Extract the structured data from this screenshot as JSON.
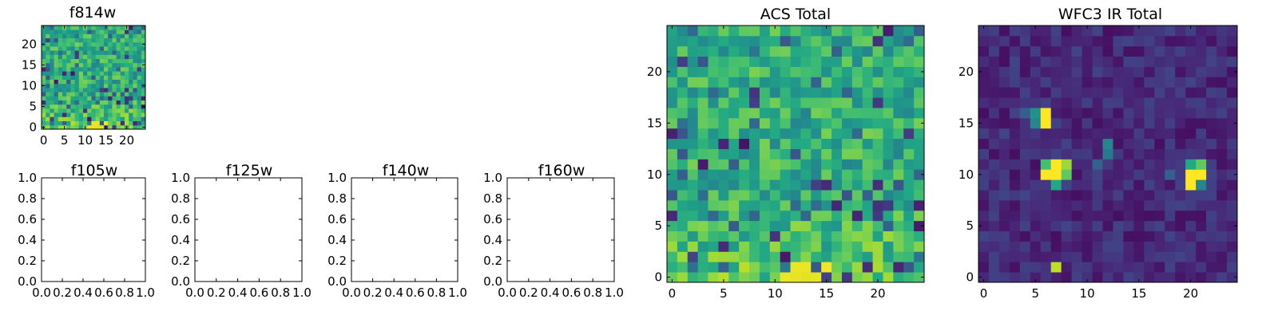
{
  "colormap": "viridis",
  "colors": {
    "viridis": [
      "#440154",
      "#482475",
      "#414487",
      "#355f8d",
      "#2a788e",
      "#21918c",
      "#22a884",
      "#44bf70",
      "#7ad151",
      "#bddf26",
      "#fde725"
    ],
    "frame": "#000000",
    "background": "#ffffff"
  },
  "chart_data": [
    {
      "type": "heatmap",
      "title": "f814w",
      "grid_size": 25,
      "xlim": [
        -0.5,
        24.5
      ],
      "ylim": [
        -0.5,
        24.5
      ],
      "x_ticks": [
        0,
        5,
        10,
        15,
        20
      ],
      "y_ticks": [
        0,
        5,
        10,
        15,
        20
      ],
      "field": "acs",
      "value_range": [
        0,
        1
      ]
    },
    {
      "type": "heatmap",
      "title": "f105w",
      "empty": true,
      "xlim": [
        0,
        1
      ],
      "ylim": [
        0,
        1
      ],
      "x_ticks": [
        "0.0",
        "0.2",
        "0.4",
        "0.6",
        "0.8",
        "1.0"
      ],
      "y_ticks": [
        "0.0",
        "0.2",
        "0.4",
        "0.6",
        "0.8",
        "1.0"
      ]
    },
    {
      "type": "heatmap",
      "title": "f125w",
      "empty": true,
      "xlim": [
        0,
        1
      ],
      "ylim": [
        0,
        1
      ],
      "x_ticks": [
        "0.0",
        "0.2",
        "0.4",
        "0.6",
        "0.8",
        "1.0"
      ],
      "y_ticks": [
        "0.0",
        "0.2",
        "0.4",
        "0.6",
        "0.8",
        "1.0"
      ]
    },
    {
      "type": "heatmap",
      "title": "f140w",
      "empty": true,
      "xlim": [
        0,
        1
      ],
      "ylim": [
        0,
        1
      ],
      "x_ticks": [
        "0.0",
        "0.2",
        "0.4",
        "0.6",
        "0.8",
        "1.0"
      ],
      "y_ticks": [
        "0.0",
        "0.2",
        "0.4",
        "0.6",
        "0.8",
        "1.0"
      ]
    },
    {
      "type": "heatmap",
      "title": "f160w",
      "empty": true,
      "xlim": [
        0,
        1
      ],
      "ylim": [
        0,
        1
      ],
      "x_ticks": [
        "0.0",
        "0.2",
        "0.4",
        "0.6",
        "0.8",
        "1.0"
      ],
      "y_ticks": [
        "0.0",
        "0.2",
        "0.4",
        "0.6",
        "0.8",
        "1.0"
      ]
    },
    {
      "type": "heatmap",
      "title": "ACS Total",
      "grid_size": 25,
      "xlim": [
        -0.5,
        24.5
      ],
      "ylim": [
        -0.5,
        24.5
      ],
      "x_ticks": [
        0,
        5,
        10,
        15,
        20
      ],
      "y_ticks": [
        0,
        5,
        10,
        15,
        20
      ],
      "field": "acs",
      "value_range": [
        0,
        1
      ]
    },
    {
      "type": "heatmap",
      "title": "WFC3 IR Total",
      "grid_size": 25,
      "xlim": [
        -0.5,
        24.5
      ],
      "ylim": [
        -0.5,
        24.5
      ],
      "x_ticks": [
        0,
        5,
        10,
        15,
        20
      ],
      "y_ticks": [
        0,
        5,
        10,
        15,
        20
      ],
      "field": "ir",
      "value_range": [
        0,
        1
      ],
      "bright_pixels": [
        {
          "x": 6,
          "y": 16,
          "v": 1.0
        },
        {
          "x": 6,
          "y": 15,
          "v": 1.0
        },
        {
          "x": 5,
          "y": 16,
          "v": 0.5
        },
        {
          "x": 5,
          "y": 15,
          "v": 0.45
        },
        {
          "x": 7,
          "y": 11,
          "v": 1.0
        },
        {
          "x": 7,
          "y": 10,
          "v": 1.0
        },
        {
          "x": 6,
          "y": 10,
          "v": 1.0
        },
        {
          "x": 8,
          "y": 11,
          "v": 0.85
        },
        {
          "x": 8,
          "y": 10,
          "v": 0.75
        },
        {
          "x": 6,
          "y": 11,
          "v": 0.7
        },
        {
          "x": 7,
          "y": 9,
          "v": 0.6
        },
        {
          "x": 21,
          "y": 10,
          "v": 1.0
        },
        {
          "x": 20,
          "y": 10,
          "v": 1.0
        },
        {
          "x": 20,
          "y": 9,
          "v": 1.0
        },
        {
          "x": 21,
          "y": 11,
          "v": 0.75
        },
        {
          "x": 20,
          "y": 11,
          "v": 0.6
        },
        {
          "x": 21,
          "y": 9,
          "v": 0.45
        },
        {
          "x": 12,
          "y": 13,
          "v": 0.45
        },
        {
          "x": 12,
          "y": 12,
          "v": 0.4
        },
        {
          "x": 7,
          "y": 1,
          "v": 0.9
        },
        {
          "x": 4,
          "y": 16,
          "v": 0.3
        },
        {
          "x": 11,
          "y": 11,
          "v": 0.3
        },
        {
          "x": 18,
          "y": 10,
          "v": 0.3
        }
      ]
    }
  ]
}
